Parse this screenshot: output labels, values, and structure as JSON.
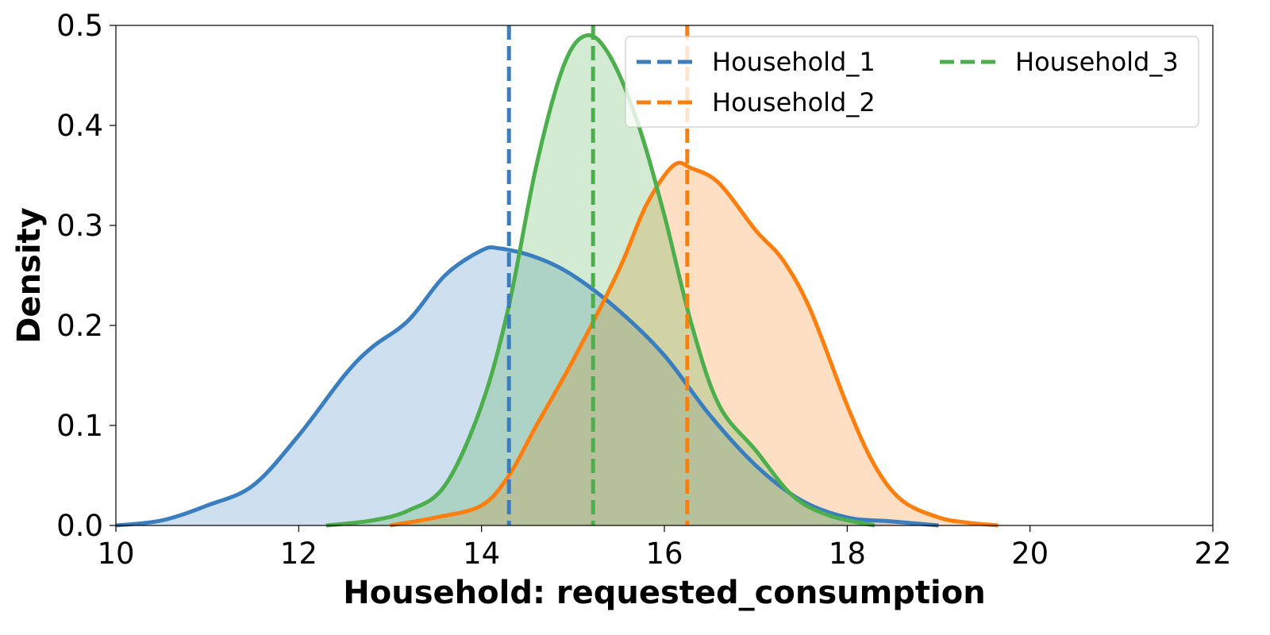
{
  "chart_data": {
    "type": "area",
    "title": "",
    "xlabel": "Household: requested_consumption",
    "ylabel": "Density",
    "xlim": [
      10,
      22
    ],
    "ylim": [
      0,
      0.5
    ],
    "xticks": [
      "10",
      "12",
      "14",
      "16",
      "18",
      "20",
      "22"
    ],
    "yticks": [
      "0.0",
      "0.1",
      "0.2",
      "0.3",
      "0.4",
      "0.5"
    ],
    "grid": false,
    "legend": {
      "placement": "top-right",
      "columns": 2
    },
    "series": [
      {
        "name": "Household_1",
        "color": "#3a7ebf",
        "mean": 14.3,
        "x": [
          10.0,
          10.5,
          11.0,
          11.5,
          12.0,
          12.5,
          12.8,
          13.2,
          13.6,
          14.0,
          14.2,
          14.6,
          15.0,
          15.5,
          16.0,
          16.5,
          17.0,
          17.5,
          18.0,
          18.5,
          19.0
        ],
        "y": [
          0.0,
          0.005,
          0.02,
          0.04,
          0.09,
          0.15,
          0.178,
          0.205,
          0.25,
          0.275,
          0.277,
          0.268,
          0.25,
          0.215,
          0.17,
          0.11,
          0.06,
          0.025,
          0.008,
          0.004,
          0.0
        ]
      },
      {
        "name": "Household_2",
        "color": "#ff7f0e",
        "mean": 16.25,
        "x": [
          13.0,
          13.5,
          14.0,
          14.3,
          14.6,
          15.0,
          15.5,
          15.8,
          16.1,
          16.3,
          16.6,
          17.0,
          17.3,
          17.6,
          18.0,
          18.3,
          18.6,
          19.0,
          19.3,
          19.65
        ],
        "y": [
          0.0,
          0.008,
          0.02,
          0.05,
          0.1,
          0.165,
          0.255,
          0.32,
          0.36,
          0.357,
          0.342,
          0.295,
          0.265,
          0.215,
          0.12,
          0.06,
          0.025,
          0.008,
          0.003,
          0.0
        ]
      },
      {
        "name": "Household_3",
        "color": "#4cae4c",
        "mean": 15.22,
        "x": [
          12.3,
          12.8,
          13.2,
          13.6,
          14.0,
          14.3,
          14.6,
          14.9,
          15.15,
          15.4,
          15.7,
          16.0,
          16.3,
          16.6,
          17.0,
          17.4,
          17.8,
          18.3
        ],
        "y": [
          0.0,
          0.005,
          0.015,
          0.04,
          0.12,
          0.22,
          0.36,
          0.46,
          0.49,
          0.47,
          0.405,
          0.31,
          0.2,
          0.12,
          0.075,
          0.03,
          0.01,
          0.0
        ]
      }
    ]
  }
}
